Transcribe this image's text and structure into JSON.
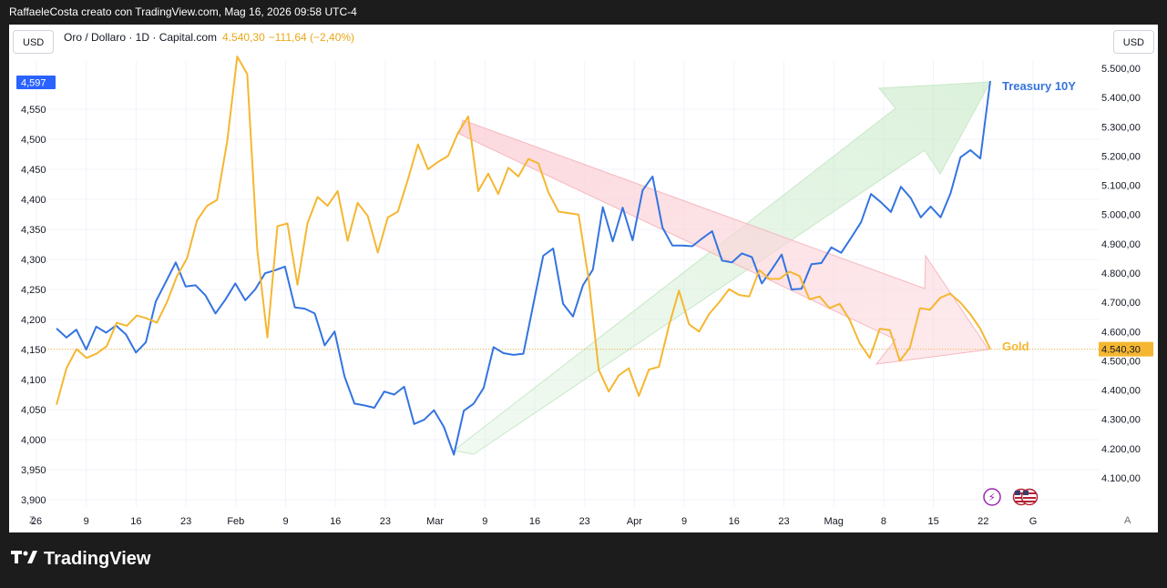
{
  "header": {
    "attribution": "RaffaeleCosta creato con TradingView.com, Mag 16, 2026 09:58 UTC-4"
  },
  "left_unit": "USD",
  "right_unit": "USD",
  "legend": {
    "symbol": "Oro / Dollaro · 1D · Capital.com",
    "price": "4.540,30",
    "change": "−111,64 (−2,40%)"
  },
  "labels": {
    "treasury": "Treasury 10Y",
    "gold": "Gold",
    "current_left": "4,597",
    "current_right": "4.540,30"
  },
  "corner_left": "Z",
  "corner_right": "A",
  "footer": {
    "brand": "TradingView"
  },
  "colors": {
    "treasury": "#3474e0",
    "gold": "#f5b731",
    "arrow_green": "#b9e4b9",
    "arrow_red": "#f6b3bd"
  },
  "chart_data": {
    "type": "line",
    "x_tick_labels": [
      "26",
      "9",
      "16",
      "23",
      "Feb",
      "9",
      "16",
      "23",
      "Mar",
      "9",
      "16",
      "23",
      "Apr",
      "9",
      "16",
      "23",
      "Mag",
      "8",
      "15",
      "22",
      "G"
    ],
    "left_axis": {
      "ticks": [
        "4,550",
        "4,500",
        "4,450",
        "4,400",
        "4,350",
        "4,300",
        "4,250",
        "4,200",
        "4,150",
        "4,100",
        "4,050",
        "4,000",
        "3,950",
        "3,900"
      ],
      "range": [
        3880,
        4610
      ]
    },
    "right_axis": {
      "ticks": [
        "5.500,00",
        "5.400,00",
        "5.300,00",
        "5.200,00",
        "5.100,00",
        "5.000,00",
        "4.900,00",
        "4.800,00",
        "4.700,00",
        "4.600,00",
        "4.500,00",
        "4.400,00",
        "4.300,00",
        "4.200,00",
        "4.100,00"
      ],
      "range": [
        4030,
        5520
      ]
    },
    "grid": true,
    "series": [
      {
        "name": "Treasury 10Y",
        "axis": "left",
        "values": [
          4185,
          4170,
          4183,
          4150,
          4188,
          4178,
          4190,
          4175,
          4145,
          4162,
          4230,
          4262,
          4295,
          4255,
          4257,
          4240,
          4210,
          4233,
          4260,
          4232,
          4250,
          4277,
          4282,
          4288,
          4220,
          4218,
          4210,
          4157,
          4180,
          4105,
          4060,
          4057,
          4053,
          4080,
          4075,
          4088,
          4026,
          4033,
          4049,
          4021,
          3975,
          4048,
          4060,
          4086,
          4154,
          4144,
          4141,
          4143,
          4225,
          4306,
          4318,
          4226,
          4205,
          4257,
          4283,
          4387,
          4330,
          4386,
          4332,
          4415,
          4438,
          4353,
          4323,
          4323,
          4322,
          4335,
          4347,
          4298,
          4295,
          4310,
          4304,
          4260,
          4283,
          4308,
          4250,
          4251,
          4292,
          4294,
          4320,
          4311,
          4336,
          4362,
          4409,
          4395,
          4379,
          4421,
          4402,
          4370,
          4388,
          4370,
          4410,
          4470,
          4482,
          4468,
          4597
        ]
      },
      {
        "name": "Gold",
        "axis": "right",
        "values": [
          4350,
          4475,
          4540,
          4510,
          4525,
          4550,
          4630,
          4620,
          4655,
          4645,
          4630,
          4700,
          4790,
          4850,
          4980,
          5030,
          5050,
          5250,
          5540,
          5480,
          4880,
          4580,
          4960,
          4970,
          4760,
          4970,
          5060,
          5030,
          5080,
          4910,
          5040,
          4995,
          4870,
          4990,
          5010,
          5120,
          5240,
          5155,
          5180,
          5200,
          5280,
          5335,
          5080,
          5140,
          5070,
          5160,
          5130,
          5190,
          5175,
          5075,
          5010,
          5005,
          5000,
          4780,
          4470,
          4395,
          4450,
          4475,
          4380,
          4470,
          4480,
          4620,
          4740,
          4625,
          4600,
          4660,
          4700,
          4745,
          4725,
          4720,
          4810,
          4780,
          4780,
          4805,
          4790,
          4710,
          4720,
          4680,
          4695,
          4640,
          4560,
          4510,
          4610,
          4605,
          4500,
          4545,
          4680,
          4675,
          4715,
          4730,
          4700,
          4660,
          4610,
          4540
        ]
      }
    ]
  }
}
